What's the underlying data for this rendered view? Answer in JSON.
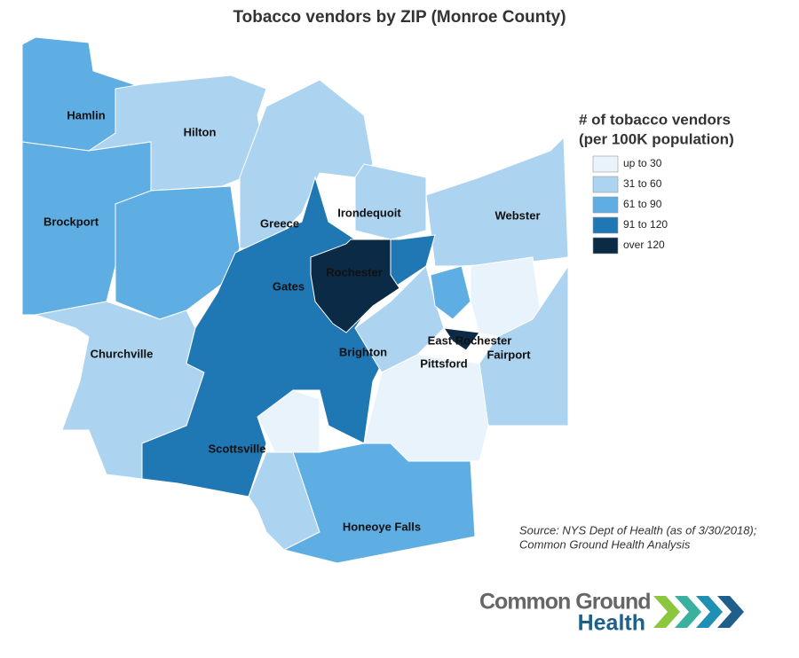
{
  "title": "Tobacco vendors by ZIP (Monroe County)",
  "legend": {
    "title": [
      "# of tobacco vendors",
      "(per 100K population)"
    ],
    "items": [
      {
        "label": "up to 30",
        "color": "#e8f3fb"
      },
      {
        "label": "31 to 60",
        "color": "#acd3f0"
      },
      {
        "label": "61 to 90",
        "color": "#5faee3"
      },
      {
        "label": "91 to 120",
        "color": "#1f77b4"
      },
      {
        "label": "over 120",
        "color": "#0b2a45"
      }
    ]
  },
  "places": [
    "Hamlin",
    "Hilton",
    "Brockport",
    "Greece",
    "Irondequoit",
    "Webster",
    "Rochester",
    "Gates",
    "East Rochester",
    "Fairport",
    "Churchville",
    "Brighton",
    "Pittsford",
    "Scottsville",
    "Honeoye Falls"
  ],
  "source": [
    "Source: NYS Dept of Health (as of 3/30/2018);",
    "Common Ground Health Analysis"
  ],
  "logo": [
    "Common Ground",
    "Health"
  ]
}
